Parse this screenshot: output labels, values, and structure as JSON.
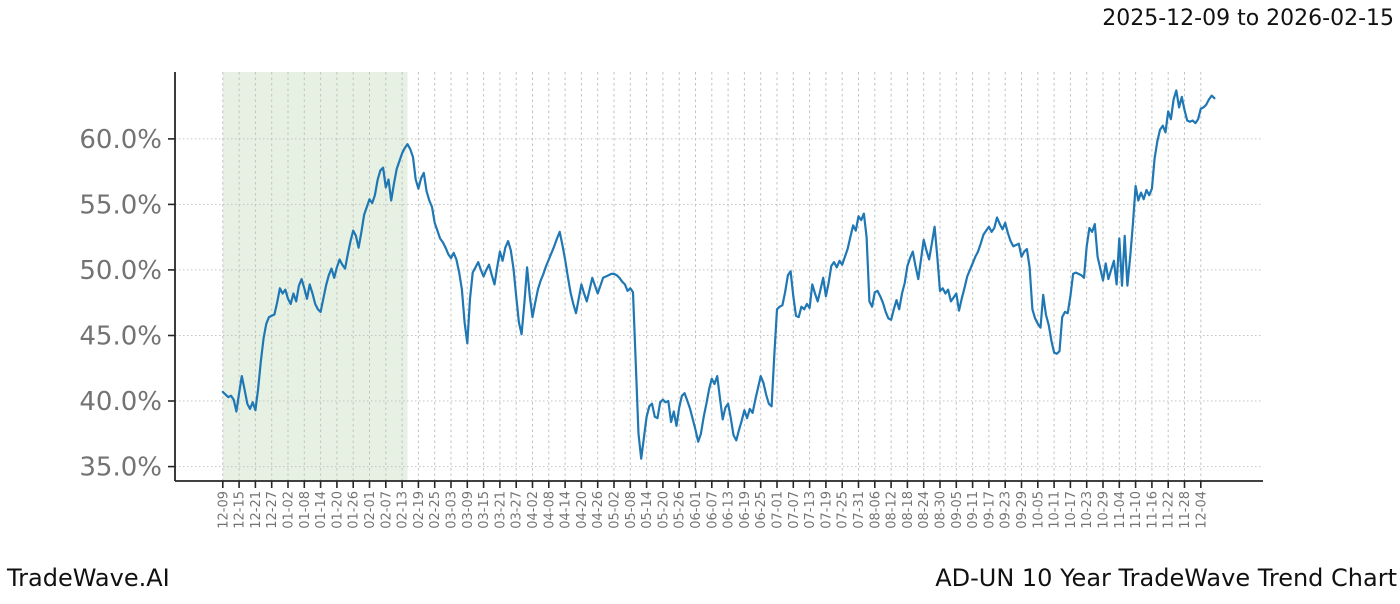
{
  "header": {
    "date_range": "2025-12-09 to 2026-02-15"
  },
  "footer": {
    "brand": "TradeWave.AI",
    "chart_title": "AD-UN 10 Year TradeWave Trend Chart"
  },
  "chart_data": {
    "type": "line",
    "title": "AD-UN 10 Year TradeWave Trend Chart",
    "subtitle_date_range": "2025-12-09 to 2026-02-15",
    "grid": true,
    "legend_position": "none",
    "colors": {
      "line": "#1f77b4",
      "highlight_band": "#e6f1e3",
      "gridline": "#c2c2c2",
      "spine": "#262626",
      "tick_label": "#737373",
      "text": "#111111"
    },
    "y_axis": {
      "ticks": [
        35,
        40,
        45,
        50,
        55,
        60
      ],
      "tick_labels": [
        "35.0%",
        "40.0%",
        "45.0%",
        "50.0%",
        "55.0%",
        "60.0%"
      ],
      "ylim": [
        33.9,
        65.1
      ],
      "unit": "%"
    },
    "x_axis": {
      "tick_interval_days": 6,
      "first_tick_day": 0,
      "xlim_days": [
        -17.6,
        382.9
      ],
      "tick_labels": [
        "12-09",
        "12-15",
        "12-21",
        "12-27",
        "01-02",
        "01-08",
        "01-14",
        "01-20",
        "01-26",
        "02-01",
        "02-07",
        "02-13",
        "02-19",
        "02-25",
        "03-03",
        "03-09",
        "03-15",
        "03-21",
        "03-27",
        "04-02",
        "04-08",
        "04-14",
        "04-20",
        "04-26",
        "05-02",
        "05-08",
        "05-14",
        "05-20",
        "05-26",
        "06-01",
        "06-07",
        "06-13",
        "06-19",
        "06-25",
        "07-01",
        "07-07",
        "07-13",
        "07-19",
        "07-25",
        "07-31",
        "08-06",
        "08-12",
        "08-18",
        "08-24",
        "08-30",
        "09-05",
        "09-11",
        "09-17",
        "09-23",
        "09-29",
        "10-05",
        "10-11",
        "10-17",
        "10-23",
        "10-29",
        "11-04",
        "11-10",
        "11-16",
        "11-22",
        "11-28",
        "12-04"
      ]
    },
    "highlight_span": {
      "start_day": 0,
      "end_day": 68,
      "start_label": "12-09",
      "end_label": "02-15",
      "label": "2025-12-09 to 2026-02-15"
    },
    "series": [
      {
        "name": "AD-UN trend (%)",
        "color": "#1f77b4",
        "start_label": "12-09",
        "step_days": 1,
        "values": [
          40.7,
          40.5,
          40.3,
          40.4,
          40.1,
          39.2,
          40.6,
          41.9,
          40.9,
          39.8,
          39.4,
          39.9,
          39.3,
          40.9,
          43.0,
          44.8,
          45.9,
          46.4,
          46.5,
          46.6,
          47.5,
          48.6,
          48.2,
          48.5,
          47.8,
          47.4,
          48.2,
          47.6,
          48.8,
          49.3,
          48.6,
          47.8,
          48.9,
          48.2,
          47.4,
          47.0,
          46.8,
          47.8,
          48.8,
          49.6,
          50.1,
          49.4,
          50.2,
          50.8,
          50.4,
          50.1,
          51.2,
          52.2,
          53.0,
          52.6,
          51.7,
          52.9,
          54.2,
          54.8,
          55.4,
          55.1,
          55.7,
          56.9,
          57.6,
          57.8,
          56.3,
          56.9,
          55.3,
          56.6,
          57.7,
          58.3,
          58.9,
          59.3,
          59.6,
          59.2,
          58.6,
          56.9,
          56.2,
          57.0,
          57.4,
          56.0,
          55.3,
          54.8,
          53.6,
          53.0,
          52.4,
          52.1,
          51.7,
          51.2,
          50.9,
          51.3,
          50.8,
          49.8,
          48.5,
          46.0,
          44.4,
          47.8,
          49.8,
          50.2,
          50.6,
          50.0,
          49.5,
          50.0,
          50.4,
          49.6,
          48.9,
          50.2,
          51.4,
          50.7,
          51.7,
          52.2,
          51.5,
          50.1,
          48.0,
          46.0,
          45.1,
          47.5,
          50.2,
          48.0,
          46.4,
          47.5,
          48.5,
          49.2,
          49.7,
          50.3,
          50.8,
          51.3,
          51.8,
          52.4,
          52.9,
          51.9,
          50.8,
          49.5,
          48.3,
          47.4,
          46.7,
          47.8,
          48.9,
          48.2,
          47.6,
          48.5,
          49.4,
          48.8,
          48.2,
          48.8,
          49.4,
          49.5,
          49.6,
          49.7,
          49.7,
          49.6,
          49.4,
          49.1,
          48.9,
          48.4,
          48.6,
          48.3,
          43.0,
          37.5,
          35.6,
          37.2,
          38.8,
          39.6,
          39.8,
          38.8,
          38.7,
          39.9,
          40.1,
          39.9,
          40.0,
          38.4,
          39.2,
          38.1,
          39.5,
          40.4,
          40.6,
          40.0,
          39.4,
          38.6,
          37.8,
          36.9,
          37.5,
          38.8,
          39.8,
          40.9,
          41.7,
          41.3,
          41.9,
          40.2,
          38.6,
          39.5,
          39.8,
          38.7,
          37.4,
          37.0,
          37.8,
          38.5,
          39.3,
          38.7,
          39.4,
          39.1,
          40.1,
          41.0,
          41.9,
          41.4,
          40.5,
          39.8,
          39.6,
          43.5,
          47.0,
          47.2,
          47.3,
          48.3,
          49.6,
          49.9,
          48.0,
          46.5,
          46.4,
          47.2,
          47.0,
          47.4,
          47.1,
          48.9,
          48.2,
          47.6,
          48.5,
          49.4,
          48.0,
          49.0,
          50.3,
          50.6,
          50.2,
          50.7,
          50.4,
          51.0,
          51.6,
          52.5,
          53.4,
          53.0,
          54.1,
          53.8,
          54.3,
          52.5,
          47.6,
          47.2,
          48.3,
          48.4,
          48.0,
          47.5,
          46.8,
          46.3,
          46.2,
          47.0,
          47.7,
          47.0,
          48.2,
          49.0,
          50.3,
          50.9,
          51.4,
          50.3,
          49.3,
          50.8,
          52.3,
          51.5,
          50.8,
          52.0,
          53.3,
          51.0,
          48.4,
          48.6,
          48.2,
          48.5,
          47.6,
          47.9,
          48.2,
          46.9,
          47.8,
          48.6,
          49.5,
          50.0,
          50.5,
          51.0,
          51.4,
          52.0,
          52.7,
          53.0,
          53.3,
          52.9,
          53.2,
          54.0,
          53.5,
          53.1,
          53.6,
          52.8,
          52.2,
          51.8,
          51.9,
          52.0,
          51.0,
          51.4,
          51.6,
          50.2,
          47.0,
          46.3,
          45.9,
          45.6,
          48.1,
          46.6,
          45.8,
          44.6,
          43.7,
          43.6,
          43.8,
          46.4,
          46.8,
          46.7,
          48.0,
          49.7,
          49.8,
          49.7,
          49.6,
          49.4,
          51.8,
          53.2,
          52.9,
          53.5,
          51.0,
          50.1,
          49.2,
          50.5,
          49.3,
          50.0,
          50.7,
          48.9,
          52.4,
          48.8,
          52.6,
          48.8,
          51.0,
          53.5,
          56.4,
          55.3,
          55.9,
          55.4,
          56.1,
          55.7,
          56.2,
          58.5,
          59.8,
          60.7,
          61.0,
          60.5,
          62.1,
          61.5,
          63.0,
          63.7,
          62.4,
          63.2,
          62.2,
          61.4,
          61.3,
          61.4,
          61.2,
          61.5,
          62.3,
          62.4,
          62.6,
          63.0,
          63.3,
          63.1
        ]
      }
    ]
  }
}
